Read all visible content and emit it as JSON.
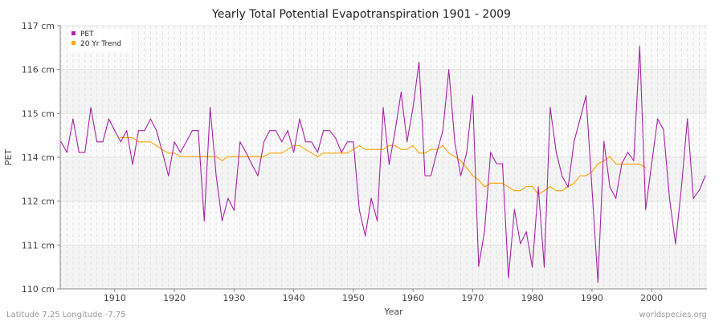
{
  "chart_data": {
    "type": "line",
    "title": "Yearly Total Potential Evapotranspiration 1901 - 2009",
    "xlabel": "Year",
    "ylabel": "PET",
    "xlim": [
      1901,
      2009
    ],
    "ylim": [
      110,
      117
    ],
    "xticks": [
      1910,
      1920,
      1930,
      1940,
      1950,
      1960,
      1970,
      1980,
      1990,
      2000
    ],
    "xtick_labels": [
      "1910",
      "1920",
      "1930",
      "1940",
      "1950",
      "1960",
      "1970",
      "1980",
      "1990",
      "2000"
    ],
    "yticks": [
      110,
      111.1667,
      112.3333,
      113.5,
      114.6667,
      115.8333,
      117
    ],
    "ytick_labels": [
      "110 cm",
      "111 cm",
      "112 cm",
      "114 cm",
      "115 cm",
      "116 cm",
      "117 cm"
    ],
    "grid": true,
    "legend_position": "top-left",
    "series": [
      {
        "name": "PET",
        "color": "#aa22aa",
        "start_year": 1901,
        "values": [
          113.91,
          113.63,
          114.52,
          113.63,
          113.63,
          114.82,
          113.91,
          113.91,
          114.52,
          114.21,
          113.91,
          114.21,
          113.31,
          114.21,
          114.21,
          114.52,
          114.21,
          113.63,
          113.01,
          113.91,
          113.63,
          113.91,
          114.21,
          114.21,
          111.81,
          114.82,
          113.01,
          111.81,
          112.41,
          112.09,
          113.91,
          113.63,
          113.31,
          113.01,
          113.91,
          114.21,
          114.21,
          113.91,
          114.21,
          113.63,
          114.52,
          113.91,
          113.91,
          113.63,
          114.21,
          114.21,
          114.02,
          113.63,
          113.91,
          113.91,
          112.1,
          111.41,
          112.41,
          111.81,
          114.82,
          113.31,
          114.21,
          115.23,
          113.91,
          114.82,
          116.03,
          113.01,
          113.01,
          113.63,
          114.21,
          115.83,
          113.91,
          113.01,
          113.63,
          115.14,
          110.6,
          111.54,
          113.63,
          113.33,
          113.33,
          110.3,
          112.11,
          111.2,
          111.52,
          110.58,
          112.71,
          110.58,
          114.82,
          113.63,
          112.99,
          112.71,
          113.92,
          114.52,
          115.14,
          112.67,
          110.17,
          113.92,
          112.71,
          112.41,
          113.33,
          113.63,
          113.41,
          116.45,
          112.11,
          113.33,
          114.52,
          114.23,
          112.41,
          111.2,
          112.71,
          114.52,
          112.41,
          112.63,
          113.01
        ]
      },
      {
        "name": "20 Yr Trend",
        "color": "#ffa500",
        "start_year": 1911,
        "values": [
          114.02,
          114.02,
          114.02,
          113.91,
          113.91,
          113.91,
          113.81,
          113.7,
          113.61,
          113.61,
          113.52,
          113.52,
          113.52,
          113.52,
          113.52,
          113.52,
          113.52,
          113.41,
          113.52,
          113.52,
          113.52,
          113.52,
          113.52,
          113.52,
          113.52,
          113.61,
          113.61,
          113.61,
          113.71,
          113.81,
          113.81,
          113.71,
          113.61,
          113.52,
          113.61,
          113.61,
          113.61,
          113.61,
          113.61,
          113.71,
          113.81,
          113.71,
          113.71,
          113.71,
          113.71,
          113.81,
          113.81,
          113.71,
          113.71,
          113.81,
          113.61,
          113.61,
          113.71,
          113.71,
          113.81,
          113.61,
          113.52,
          113.41,
          113.22,
          113.01,
          112.9,
          112.71,
          112.81,
          112.81,
          112.81,
          112.71,
          112.61,
          112.61,
          112.72,
          112.72,
          112.52,
          112.61,
          112.72,
          112.61,
          112.61,
          112.72,
          112.81,
          113.01,
          113.01,
          113.12,
          113.32,
          113.41,
          113.52,
          113.32,
          113.32,
          113.32,
          113.32,
          113.32,
          113.22
        ]
      }
    ]
  },
  "footer": {
    "location": "Latitude 7.25 Longitude -7.75",
    "source": "worldspecies.org"
  }
}
